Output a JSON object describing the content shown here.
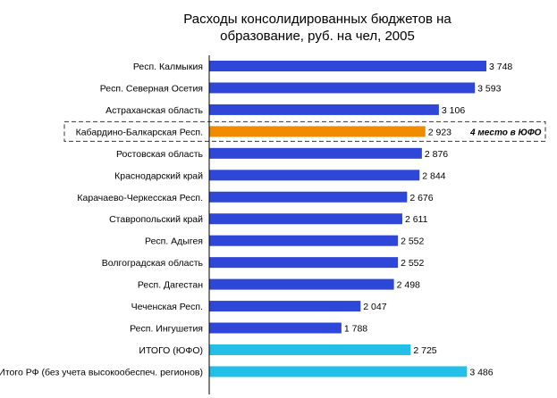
{
  "chart_data": {
    "type": "bar",
    "orientation": "horizontal",
    "title_lines": [
      "Расходы консолидированных бюджетов на",
      "образование, руб. на чел, 2005"
    ],
    "xlabel": "",
    "ylabel": "",
    "grid": false,
    "legend": "none",
    "xlim": [
      0,
      4000
    ],
    "colors": {
      "default": "#2f47d8",
      "highlight": "#f08a00",
      "total": "#22bfe8"
    },
    "categories": [
      "Респ. Калмыкия",
      "Респ. Северная Осетия",
      "Астраханская область",
      "Кабардино-Балкарская Респ.",
      "Ростовская область",
      "Краснодарский край",
      "Карачаево-Черкесская Респ.",
      "Ставропольский край",
      "Респ. Адыгея",
      "Волгоградская область",
      "Респ. Дагестан",
      "Чеченская Респ.",
      "Респ. Ингушетия",
      "ИТОГО (ЮФО)",
      "Итого РФ (без учета высокообеспеч. регионов)"
    ],
    "values": [
      3748,
      3593,
      3106,
      2923,
      2876,
      2844,
      2676,
      2611,
      2552,
      2552,
      2498,
      2047,
      1788,
      2725,
      3486
    ],
    "value_labels": [
      "3 748",
      "3 593",
      "3 106",
      "2 923",
      "2 876",
      "2 844",
      "2 676",
      "2 611",
      "2 552",
      "2 552",
      "2 498",
      "2 047",
      "1 788",
      "2 725",
      "3 486"
    ],
    "bar_kinds": [
      "default",
      "default",
      "default",
      "highlight",
      "default",
      "default",
      "default",
      "default",
      "default",
      "default",
      "default",
      "default",
      "default",
      "total",
      "total"
    ],
    "annotation": {
      "category_index": 3,
      "text": "4 место в ЮФО",
      "boxed": true
    }
  }
}
